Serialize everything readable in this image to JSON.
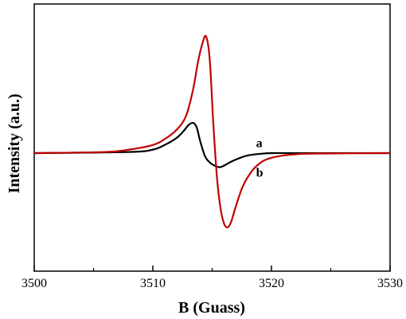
{
  "chart_data": {
    "type": "line",
    "xlabel": "B (Guass)",
    "ylabel": "Intensity (a.u.)",
    "xlim": [
      3500,
      3530
    ],
    "x_ticks": [
      3500,
      3510,
      3520,
      3530
    ],
    "y_ticks_shown": false,
    "grid": false,
    "series": [
      {
        "name": "a",
        "color": "#000000",
        "x": [
          3500,
          3508,
          3510,
          3511,
          3512,
          3512.6,
          3513.0,
          3513.4,
          3513.7,
          3514.0,
          3514.4,
          3514.8,
          3515.2,
          3515.6,
          3516.0,
          3516.6,
          3517.2,
          3518.0,
          3519.0,
          3520.0,
          3522.0,
          3530
        ],
        "y": [
          0.0,
          0.01,
          0.03,
          0.07,
          0.13,
          0.19,
          0.24,
          0.26,
          0.22,
          0.1,
          -0.04,
          -0.12,
          -0.16,
          -0.18,
          -0.16,
          -0.11,
          -0.07,
          -0.03,
          -0.01,
          0.0,
          0.0,
          0.0
        ]
      },
      {
        "name": "b",
        "color": "#c00000",
        "x": [
          3500,
          3506,
          3508,
          3510,
          3511,
          3512,
          3512.8,
          3513.4,
          3513.8,
          3514.2,
          3514.5,
          3514.8,
          3515.1,
          3515.4,
          3515.7,
          3516.0,
          3516.3,
          3516.6,
          3517.0,
          3517.6,
          3518.4,
          3519.2,
          3520.0,
          3521.0,
          3522.0,
          3524.0,
          3530
        ],
        "y": [
          0.0,
          0.01,
          0.03,
          0.07,
          0.12,
          0.2,
          0.32,
          0.55,
          0.78,
          0.95,
          1.0,
          0.8,
          0.25,
          -0.3,
          -0.7,
          -0.9,
          -0.95,
          -0.88,
          -0.68,
          -0.42,
          -0.22,
          -0.11,
          -0.06,
          -0.03,
          -0.015,
          -0.005,
          0.0
        ]
      }
    ],
    "annotations": [
      {
        "text": "a",
        "x": 3518.7,
        "y": 0.05
      },
      {
        "text": "b",
        "x": 3518.7,
        "y": -0.3
      }
    ]
  }
}
